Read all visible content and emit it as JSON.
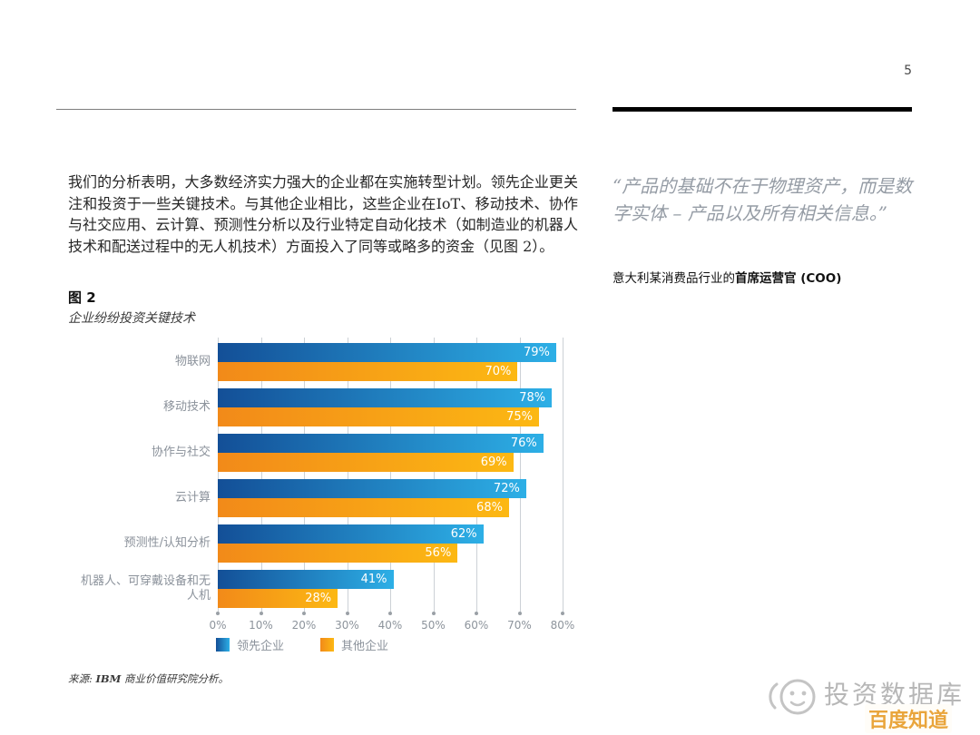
{
  "page": {
    "number": "5"
  },
  "article": {
    "paragraph": "我们的分析表明，大多数经济实力强大的企业都在实施转型计划。领先企业更关注和投资于一些关键技术。与其他企业相比，这些企业在IoT、移动技术、协作与社交应用、云计算、预测性分析以及行业特定自动化技术（如制造业的机器人技术和配送过程中的无人机技术）方面投入了同等或略多的资金（见图 2）。"
  },
  "quote": {
    "text": "“产品的基础不在于物理资产，而是数字实体 – 产品以及所有相关信息。”",
    "attribution_regular": "意大利某消费品行业的",
    "attribution_bold": "首席运营官 (COO)"
  },
  "figure": {
    "label": "图 2",
    "subtitle": "企业纷纷投资关键技术",
    "source_prefix": "来源: ",
    "source_org": "IBM",
    "source_suffix": " 商业价值研究院分析。"
  },
  "chart_data": {
    "type": "bar",
    "orientation": "horizontal",
    "title": "企业纷纷投资关键技术",
    "categories": [
      "物联网",
      "移动技术",
      "协作与社交",
      "云计算",
      "预测性/认知分析",
      "机器人、可穿戴设备和无人机"
    ],
    "series": [
      {
        "name": "领先企业",
        "values": [
          79,
          78,
          76,
          72,
          62,
          41
        ],
        "color_start": "#134f97",
        "color_end": "#2dafe6"
      },
      {
        "name": "其他企业",
        "values": [
          70,
          75,
          69,
          68,
          56,
          28
        ],
        "color_start": "#f28a19",
        "color_end": "#fcb813"
      }
    ],
    "value_suffix": "%",
    "xlim": [
      0,
      80
    ],
    "xticks": [
      "0%",
      "10%",
      "20%",
      "30%",
      "40%",
      "50%",
      "60%",
      "70%",
      "80%"
    ],
    "grid": true,
    "legend_position": "bottom"
  },
  "watermark": {
    "name": "投资数据库",
    "badge": "百度知道"
  }
}
